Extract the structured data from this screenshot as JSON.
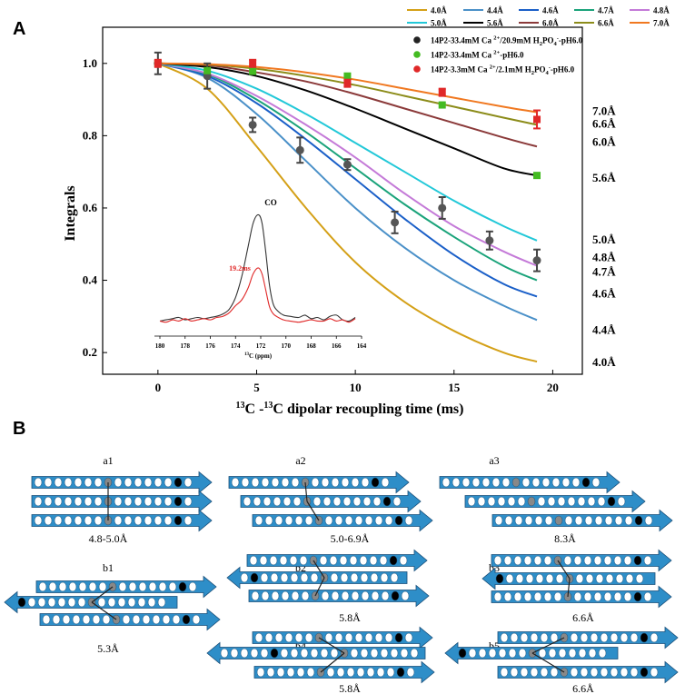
{
  "panel_labels": {
    "a": "A",
    "b": "B"
  },
  "chart_data": [
    {
      "type": "line",
      "title": "",
      "xlabel_parts": [
        "13",
        "C -",
        "13",
        "C dipolar recoupling time (ms)"
      ],
      "ylabel": "Integrals",
      "xlim": [
        -2.8,
        21.5
      ],
      "ylim": [
        0.14,
        1.1
      ],
      "xticks": [
        0,
        5,
        10,
        15,
        20
      ],
      "yticks": [
        0.2,
        0.4,
        0.6,
        0.8,
        1.0
      ],
      "xtick_labels": [
        "0",
        "5",
        "10",
        "15",
        "20"
      ],
      "ytick_labels": [
        "0.2",
        "0.4",
        "0.6",
        "0.8",
        "1.0"
      ],
      "curves": [
        {
          "name": "4.0Å",
          "color": "#d4a017",
          "x": [
            0,
            2.5,
            5,
            7.5,
            10,
            12.5,
            15,
            17.5,
            19.2
          ],
          "y": [
            1.0,
            0.93,
            0.77,
            0.6,
            0.45,
            0.34,
            0.26,
            0.2,
            0.175
          ]
        },
        {
          "name": "4.4Å",
          "color": "#4a90c8",
          "x": [
            0,
            2.5,
            5,
            7.5,
            10,
            12.5,
            15,
            17.5,
            19.2
          ],
          "y": [
            1.0,
            0.96,
            0.86,
            0.73,
            0.6,
            0.49,
            0.4,
            0.33,
            0.29
          ]
        },
        {
          "name": "4.6Å",
          "color": "#1a5fc8",
          "x": [
            0,
            2.5,
            5,
            7.5,
            10,
            12.5,
            15,
            17.5,
            19.2
          ],
          "y": [
            1.0,
            0.965,
            0.89,
            0.79,
            0.68,
            0.57,
            0.47,
            0.39,
            0.355
          ]
        },
        {
          "name": "4.7Å",
          "color": "#1aa37a",
          "x": [
            0,
            2.5,
            5,
            7.5,
            10,
            12.5,
            15,
            17.5,
            19.2
          ],
          "y": [
            1.0,
            0.97,
            0.9,
            0.81,
            0.71,
            0.61,
            0.52,
            0.44,
            0.4
          ]
        },
        {
          "name": "4.8Å",
          "color": "#c47ad8",
          "x": [
            0,
            2.5,
            5,
            7.5,
            10,
            12.5,
            15,
            17.5,
            19.2
          ],
          "y": [
            1.0,
            0.972,
            0.91,
            0.83,
            0.74,
            0.64,
            0.55,
            0.48,
            0.44
          ]
        },
        {
          "name": "5.0Å",
          "color": "#22c8d8",
          "x": [
            0,
            2.5,
            5,
            7.5,
            10,
            12.5,
            15,
            17.5,
            19.2
          ],
          "y": [
            1.0,
            0.98,
            0.93,
            0.86,
            0.78,
            0.7,
            0.62,
            0.55,
            0.51
          ]
        },
        {
          "name": "5.6Å",
          "color": "#000000",
          "x": [
            0,
            2.5,
            5,
            7.5,
            10,
            12.5,
            15,
            17.5,
            19.2
          ],
          "y": [
            1.0,
            0.99,
            0.965,
            0.925,
            0.875,
            0.82,
            0.765,
            0.71,
            0.69
          ]
        },
        {
          "name": "6.0Å",
          "color": "#8b3a3a",
          "x": [
            0,
            2.5,
            5,
            7.5,
            10,
            12.5,
            15,
            17.5,
            19.2
          ],
          "y": [
            1.0,
            0.995,
            0.975,
            0.95,
            0.915,
            0.875,
            0.835,
            0.795,
            0.77
          ]
        },
        {
          "name": "6.6Å",
          "color": "#8c8c1a",
          "x": [
            0,
            2.5,
            5,
            7.5,
            10,
            12.5,
            15,
            17.5,
            19.2
          ],
          "y": [
            1.0,
            0.997,
            0.985,
            0.965,
            0.94,
            0.91,
            0.88,
            0.85,
            0.83
          ]
        },
        {
          "name": "7.0Å",
          "color": "#f07820",
          "x": [
            0,
            2.5,
            5,
            7.5,
            10,
            12.5,
            15,
            17.5,
            19.2
          ],
          "y": [
            1.0,
            0.998,
            0.99,
            0.975,
            0.955,
            0.93,
            0.905,
            0.88,
            0.865
          ]
        }
      ],
      "curve_labels": [
        "7.0Å",
        "6.6Å",
        "6.0Å",
        "5.6Å",
        "5.0Å",
        "4.8Å",
        "4.7Å",
        "4.6Å",
        "4.4Å",
        "4.0Å"
      ],
      "curve_label_y": [
        0.87,
        0.835,
        0.785,
        0.685,
        0.515,
        0.465,
        0.425,
        0.365,
        0.265,
        0.175
      ],
      "scatter": [
        {
          "name": "Ca 20.9mM",
          "color": "#444444",
          "x": [
            0,
            2.5,
            4.8,
            7.2,
            9.6,
            12.0,
            14.4,
            16.8,
            19.2
          ],
          "y": [
            1.0,
            0.965,
            0.83,
            0.76,
            0.72,
            0.56,
            0.6,
            0.51,
            0.455
          ],
          "err": [
            0.03,
            0.035,
            0.02,
            0.035,
            0.015,
            0.03,
            0.03,
            0.025,
            0.03
          ]
        },
        {
          "name": "Ca pH6",
          "color": "#44bb22",
          "x": [
            0,
            2.5,
            4.8,
            9.6,
            14.4,
            19.2
          ],
          "y": [
            1.0,
            0.98,
            0.978,
            0.965,
            0.885,
            0.69
          ],
          "err": [
            0,
            0,
            0,
            0,
            0,
            0
          ]
        },
        {
          "name": "Ca 2.1mM",
          "color": "#e02828",
          "x": [
            0,
            4.8,
            9.6,
            14.4,
            19.2
          ],
          "y": [
            1.0,
            1.0,
            0.945,
            0.92,
            0.845
          ],
          "err": [
            0.01,
            0.01,
            0.01,
            0.01,
            0.025
          ]
        }
      ],
      "legend": {
        "line_entries": [
          "4.0Å",
          "4.4Å",
          "4.6Å",
          "4.7Å",
          "4.8Å",
          "5.0Å",
          "5.6Å",
          "6.0Å",
          "6.6Å",
          "7.0Å"
        ],
        "point_entries": [
          {
            "color": "#222222",
            "label_a": "14P2-33.4mM Ca ",
            "sup": "2+",
            "label_b": "/20.9mM H",
            "sub": "2",
            "label_c": "PO",
            "sub2": "4",
            "sup2": "-",
            "label_d": "-pH6.0"
          },
          {
            "color": "#44bb22",
            "label_a": "14P2-33.4mM Ca ",
            "sup": "2+",
            "label_b": "-pH6.0",
            "sub": "",
            "label_c": "",
            "sub2": "",
            "sup2": "",
            "label_d": ""
          },
          {
            "color": "#e02828",
            "label_a": "14P2-3.3mM Ca ",
            "sup": "2+",
            "label_b": "/2.1mM H",
            "sub": "2",
            "label_c": "PO",
            "sub2": "4",
            "sup2": "-",
            "label_d": "-pH6.0"
          }
        ]
      }
    },
    {
      "type": "line",
      "title": "CO",
      "annotation": "19.2ms",
      "xlabel_parts": [
        "13",
        "C (ppm)"
      ],
      "xticks": [
        180,
        178,
        176,
        174,
        172,
        170,
        168,
        166,
        164
      ],
      "xtick_labels": [
        "180",
        "178",
        "176",
        "174",
        "172",
        "170",
        "168",
        "166",
        "164"
      ],
      "xlim": [
        180,
        164
      ],
      "ylim": [
        0,
        1.0
      ],
      "series": [
        {
          "name": "reference",
          "color": "#333333",
          "x": [
            180,
            179.5,
            179,
            178.5,
            178,
            177.5,
            177,
            176.5,
            176,
            175.5,
            175,
            174.5,
            174,
            173.5,
            173,
            172.6,
            172.2,
            171.9,
            171.6,
            171.3,
            171,
            170.6,
            170.2,
            169.7,
            169,
            168.5,
            168,
            167.5,
            167,
            166.5,
            166,
            165.5,
            165,
            164.5
          ],
          "y": [
            0.02,
            0.03,
            0.04,
            0.05,
            0.03,
            0.04,
            0.05,
            0.04,
            0.05,
            0.06,
            0.08,
            0.12,
            0.22,
            0.4,
            0.65,
            0.85,
            0.92,
            0.85,
            0.6,
            0.32,
            0.16,
            0.1,
            0.07,
            0.06,
            0.05,
            0.07,
            0.04,
            0.05,
            0.03,
            0.06,
            0.07,
            0.03,
            0.02,
            0.05
          ]
        },
        {
          "name": "19.2ms",
          "color": "#e02828",
          "x": [
            180,
            179.5,
            179,
            178.5,
            178,
            177.5,
            177,
            176.5,
            176,
            175.5,
            175,
            174.5,
            174,
            173.5,
            173,
            172.6,
            172.2,
            171.9,
            171.6,
            171.3,
            171,
            170.6,
            170.2,
            169.7,
            169,
            168.5,
            168,
            167.5,
            167,
            166.5,
            166,
            165.5,
            165,
            164.5
          ],
          "y": [
            0.02,
            0.01,
            0.03,
            0.02,
            0.04,
            0.02,
            0.03,
            0.04,
            0.03,
            0.05,
            0.06,
            0.09,
            0.15,
            0.2,
            0.3,
            0.42,
            0.47,
            0.42,
            0.28,
            0.14,
            0.08,
            0.05,
            0.03,
            0.02,
            0.01,
            0.02,
            0.03,
            0.02,
            0.02,
            0.04,
            0.02,
            0.03,
            0.01,
            0.04
          ]
        }
      ]
    }
  ],
  "diagram_b": {
    "strand_color": "#2e8ec8",
    "panels": [
      {
        "id": "a1",
        "label": "a1",
        "distance": "4.8-5.0Å"
      },
      {
        "id": "a2",
        "label": "a2",
        "distance": "5.0-6.9Å"
      },
      {
        "id": "a3",
        "label": "a3",
        "distance": "8.3Å"
      },
      {
        "id": "b1",
        "label": "b1",
        "distance": "5.3Å"
      },
      {
        "id": "b2",
        "label": "b2",
        "distance": "5.8Å"
      },
      {
        "id": "b3",
        "label": "b3",
        "distance": "6.6Å"
      },
      {
        "id": "b4",
        "label": "b4",
        "distance": "5.8Å"
      },
      {
        "id": "b5",
        "label": "b5",
        "distance": "6.6Å"
      }
    ]
  }
}
